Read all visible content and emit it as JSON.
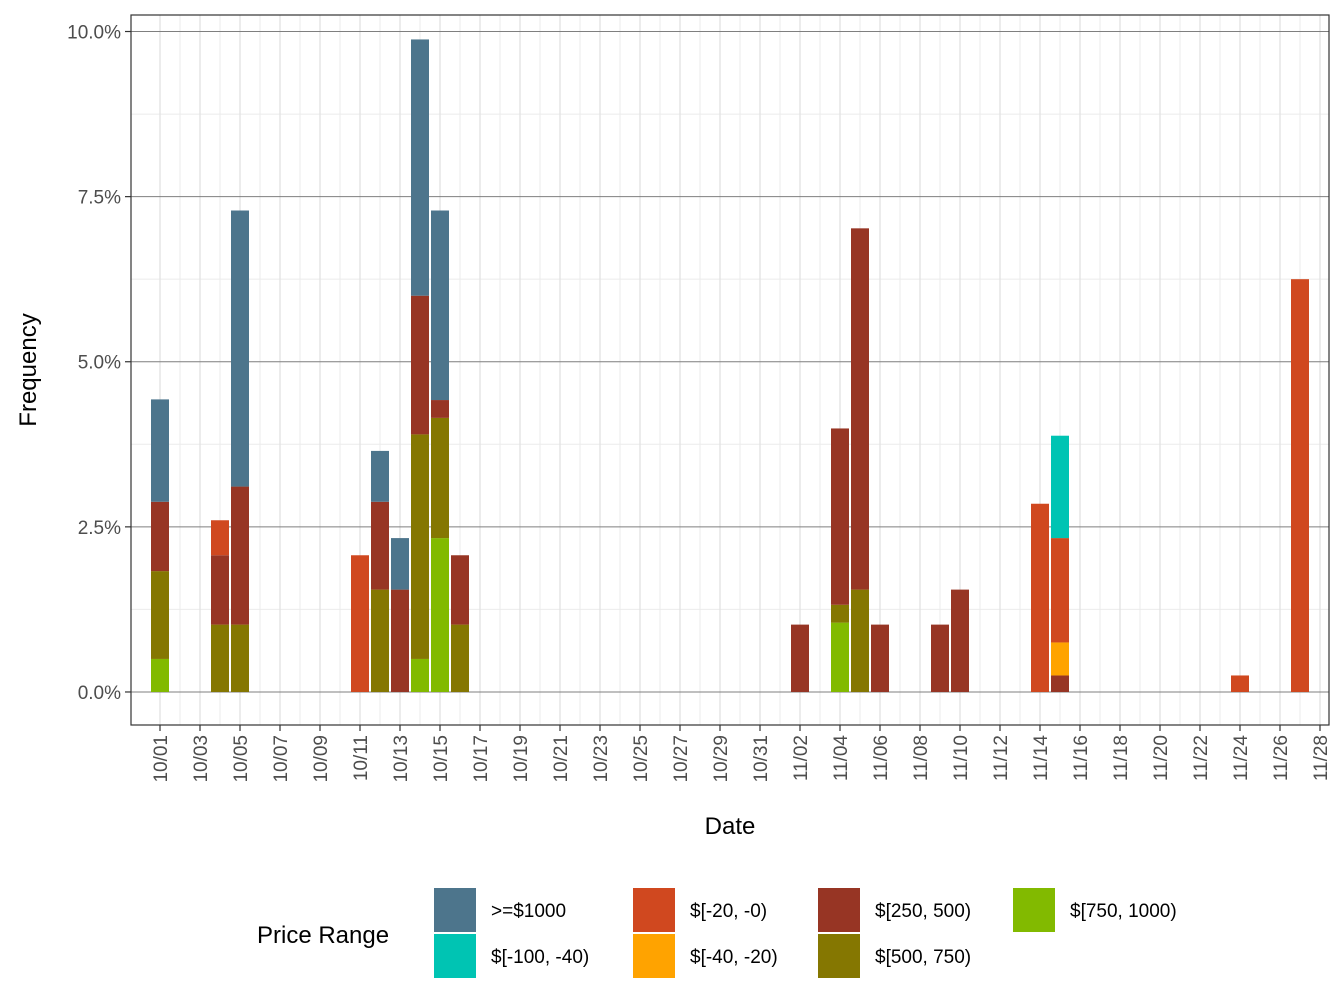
{
  "chart_data": {
    "type": "bar",
    "stacked": true,
    "xlabel": "Date",
    "ylabel": "Frequency",
    "ylim": [
      -0.005,
      0.1025
    ],
    "y_ticks": [
      0,
      0.025,
      0.05,
      0.075,
      0.1
    ],
    "y_tick_labels": [
      "0.0%",
      "2.5%",
      "5.0%",
      "7.5%",
      "10.0%"
    ],
    "x_tick_labels": [
      "10/01",
      "10/03",
      "10/05",
      "10/07",
      "10/09",
      "10/11",
      "10/13",
      "10/15",
      "10/17",
      "10/19",
      "10/21",
      "10/23",
      "10/25",
      "10/27",
      "10/29",
      "10/31",
      "11/02",
      "11/04",
      "11/06",
      "11/08",
      "11/10",
      "11/12",
      "11/14",
      "11/16",
      "11/18",
      "11/20",
      "11/22",
      "11/24",
      "11/26",
      "11/28"
    ],
    "grid": true,
    "legend": {
      "title": "Price Range",
      "position": "bottom",
      "entries": [
        ">=$1000",
        "$[-100, -40)",
        "$[-20, -0)",
        "$[-40, -20)",
        "$[250, 500)",
        "$[500, 750)",
        "$[750, 1000)"
      ]
    },
    "series": [
      {
        "name": "$[750, 1000)",
        "color": "#82BA00",
        "points": [
          [
            "10/01",
            0.005
          ],
          [
            "10/14",
            0.005
          ],
          [
            "10/15",
            0.0233
          ],
          [
            "11/04",
            0.0105
          ]
        ]
      },
      {
        "name": "$[500, 750)",
        "color": "#857701",
        "points": [
          [
            "10/01",
            0.0133
          ],
          [
            "10/04",
            0.0102
          ],
          [
            "10/05",
            0.0102
          ],
          [
            "10/12",
            0.0155
          ],
          [
            "10/14",
            0.034
          ],
          [
            "10/15",
            0.0182
          ],
          [
            "10/16",
            0.0102
          ],
          [
            "11/04",
            0.0027
          ],
          [
            "11/05",
            0.0155
          ]
        ]
      },
      {
        "name": "$[250, 500)",
        "color": "#973524",
        "points": [
          [
            "10/01",
            0.0105
          ],
          [
            "10/04",
            0.0105
          ],
          [
            "10/05",
            0.0209
          ],
          [
            "10/12",
            0.0133
          ],
          [
            "10/13",
            0.0155
          ],
          [
            "10/14",
            0.021
          ],
          [
            "10/15",
            0.0027
          ],
          [
            "10/16",
            0.0105
          ],
          [
            "11/02",
            0.0102
          ],
          [
            "11/04",
            0.0267
          ],
          [
            "11/05",
            0.0547
          ],
          [
            "11/06",
            0.0102
          ],
          [
            "11/09",
            0.0102
          ],
          [
            "11/10",
            0.0155
          ],
          [
            "11/15",
            0.0025
          ]
        ]
      },
      {
        "name": "$[-40, -20)",
        "color": "#FFA300",
        "points": [
          [
            "11/15",
            0.005
          ]
        ]
      },
      {
        "name": "$[-20, -0)",
        "color": "#D0481F",
        "points": [
          [
            "10/04",
            0.0053
          ],
          [
            "10/11",
            0.0207
          ],
          [
            "11/14",
            0.0285
          ],
          [
            "11/15",
            0.0158
          ],
          [
            "11/24",
            0.0025
          ],
          [
            "11/27",
            0.0625
          ]
        ]
      },
      {
        "name": "$[-100, -40)",
        "color": "#00C4B3",
        "points": [
          [
            "11/15",
            0.0155
          ]
        ]
      },
      {
        "name": ">=$1000",
        "color": "#4D758C",
        "points": [
          [
            "10/01",
            0.0155
          ],
          [
            "10/05",
            0.0418
          ],
          [
            "10/12",
            0.0077
          ],
          [
            "10/13",
            0.0078
          ],
          [
            "10/14",
            0.0388
          ],
          [
            "10/15",
            0.0287
          ]
        ]
      }
    ]
  }
}
